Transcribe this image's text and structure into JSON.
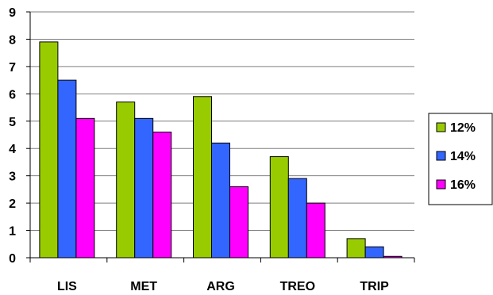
{
  "chart_data": {
    "type": "bar",
    "categories": [
      "LIS",
      "MET",
      "ARG",
      "TREO",
      "TRIP"
    ],
    "series": [
      {
        "name": "12%",
        "color": "#99CC00",
        "values": [
          7.9,
          5.7,
          5.9,
          3.7,
          0.7
        ]
      },
      {
        "name": "14%",
        "color": "#3366FF",
        "values": [
          6.5,
          5.1,
          4.2,
          2.9,
          0.4
        ]
      },
      {
        "name": "16%",
        "color": "#FF00FF",
        "values": [
          5.1,
          4.6,
          2.6,
          2.0,
          0.05
        ]
      }
    ],
    "ylim": [
      0,
      9
    ],
    "yticks": [
      "0",
      "1",
      "2",
      "3",
      "4",
      "5",
      "6",
      "7",
      "8",
      "9"
    ],
    "grid": true,
    "legend_position": "right"
  }
}
